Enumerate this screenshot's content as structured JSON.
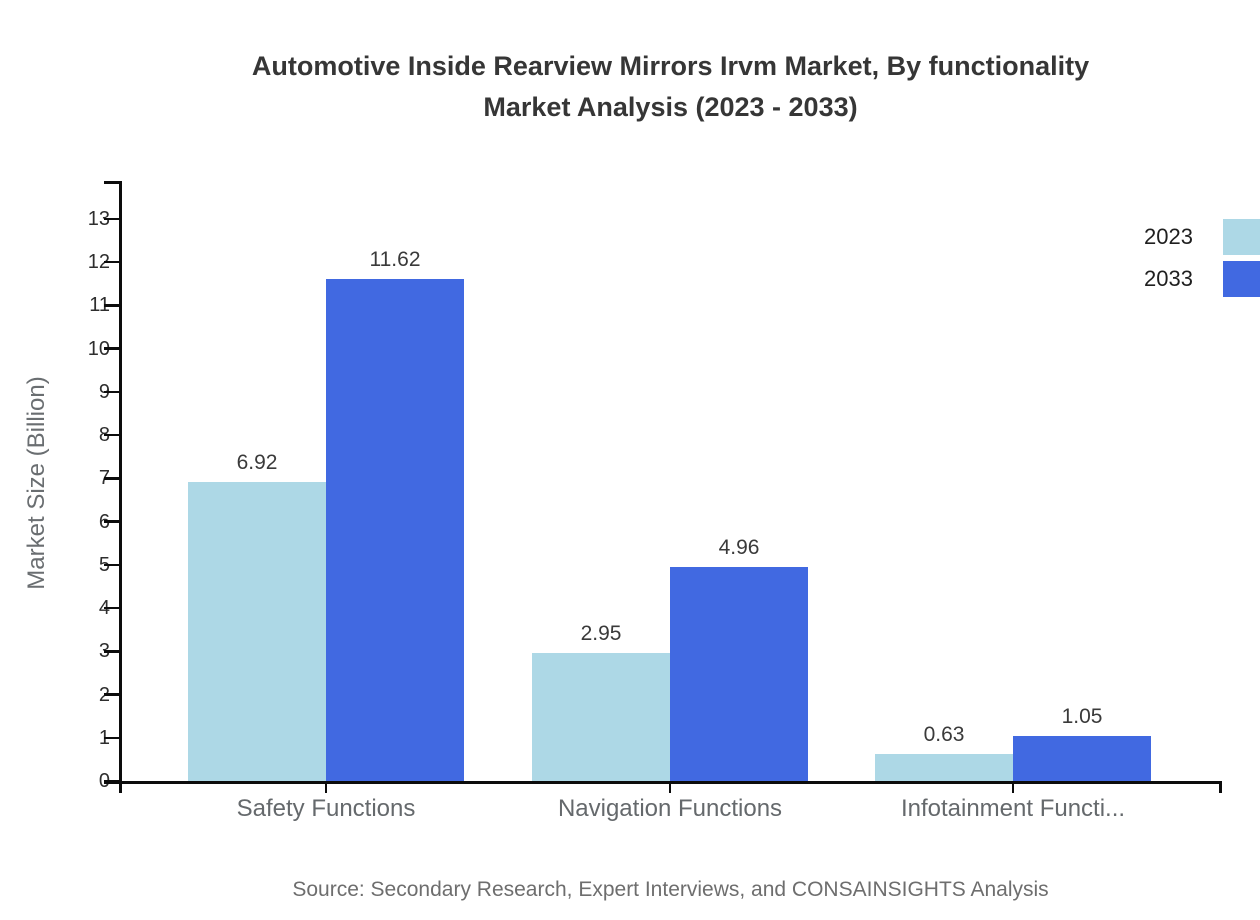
{
  "page": {
    "background": "#ffffff"
  },
  "chart_data": {
    "type": "bar",
    "title_lines": [
      "Automotive Inside Rearview Mirrors Irvm Market, By functionality",
      "Market Analysis (2023 - 2033)"
    ],
    "ylabel": "Market Size (Billion)",
    "xlabel": "",
    "categories": [
      "Safety Functions",
      "Navigation Functions",
      "Infotainment Functi..."
    ],
    "series": [
      {
        "name": "2023",
        "color": "#add8e6",
        "values": [
          6.92,
          2.95,
          0.63
        ]
      },
      {
        "name": "2033",
        "color": "#4169e1",
        "values": [
          11.62,
          4.96,
          1.05
        ]
      }
    ],
    "yticks": [
      0,
      1,
      2,
      3,
      4,
      5,
      6,
      7,
      8,
      9,
      10,
      11,
      12,
      13
    ],
    "ylim": [
      0,
      13.9
    ],
    "grid": false,
    "legend_position": "top-right",
    "axis_color": "#0c0c0c",
    "value_label_format": "2-decimals",
    "source_note": "Source: Secondary Research, Expert Interviews, and CONSAINSIGHTS Analysis"
  }
}
